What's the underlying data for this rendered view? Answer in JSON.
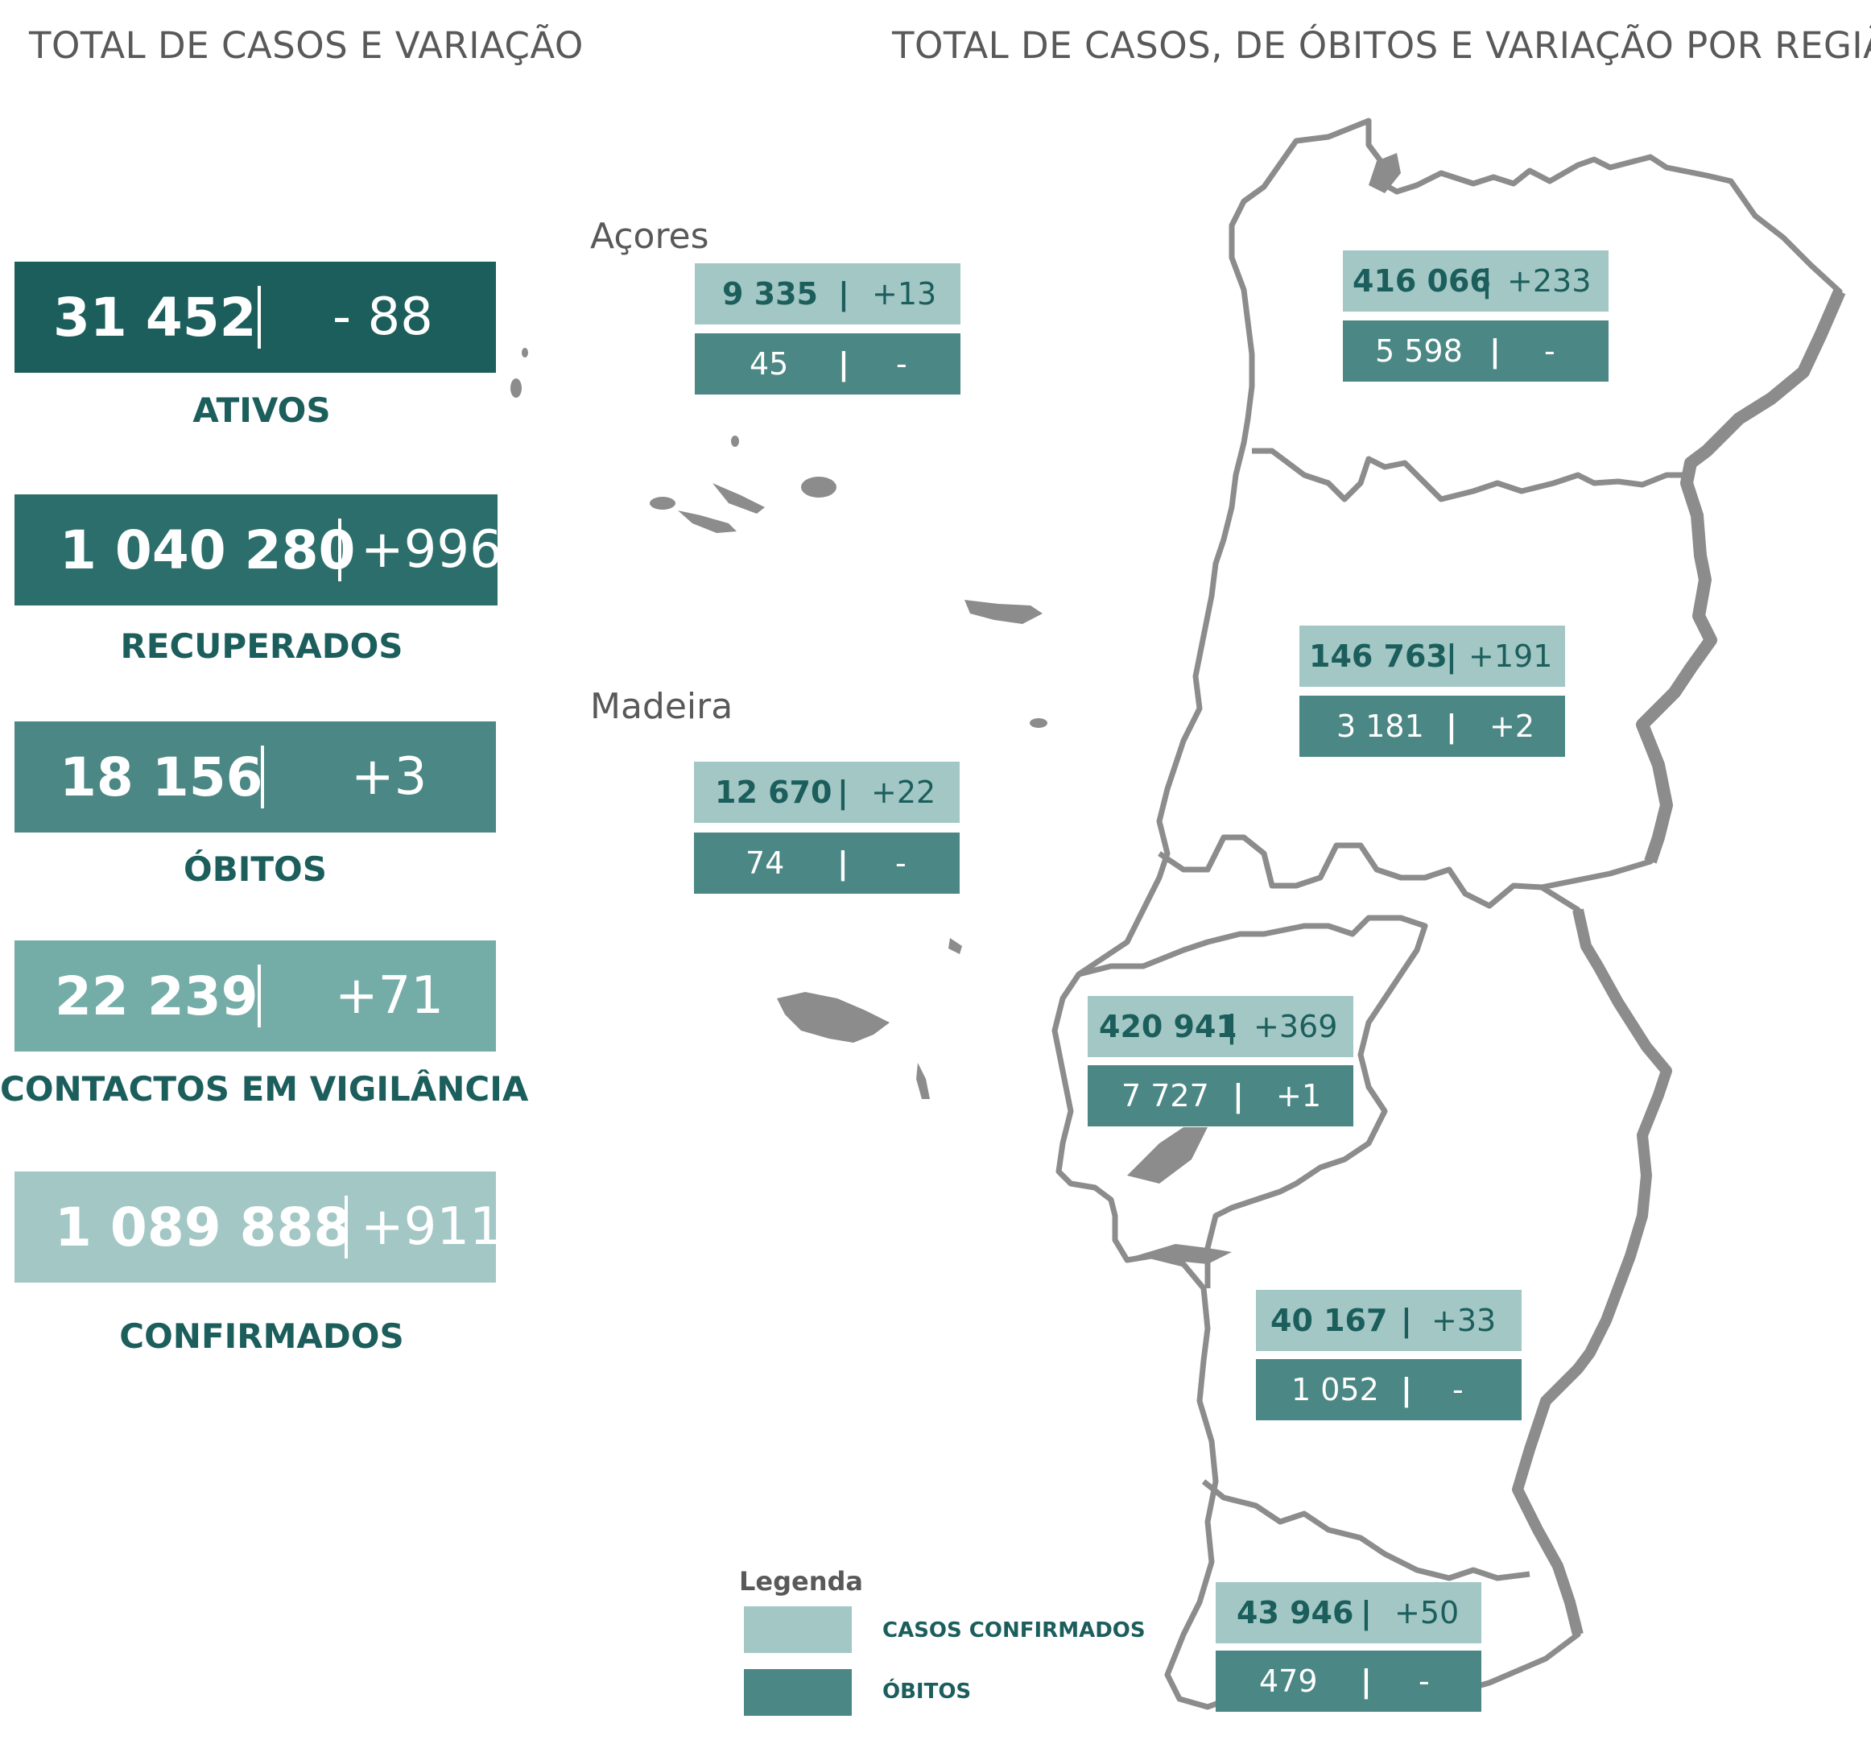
{
  "headings": {
    "left": "TOTAL DE CASOS E VARIAÇÃO",
    "right": "TOTAL DE CASOS, DE ÓBITOS E VARIAÇÃO POR REGIÃO"
  },
  "colors": {
    "ativos": "#1b5e5c",
    "recuperados": "#2b6e6b",
    "obitos": "#4b8784",
    "contactos": "#74ada8",
    "confirmados": "#a3c7c5",
    "map_outline": "#8c8c8c",
    "label_text": "#1b5e5c"
  },
  "stats": {
    "ativos": {
      "value": "31 452",
      "sep": "|",
      "delta": "- 88",
      "label": "ATIVOS"
    },
    "recuperados": {
      "value": "1 040 280",
      "sep": "|",
      "delta": "+996",
      "label": "RECUPERADOS"
    },
    "obitos": {
      "value": "18 156",
      "sep": "|",
      "delta": "+3",
      "label": "ÓBITOS"
    },
    "contactos": {
      "value": "22 239",
      "sep": "|",
      "delta": "+71",
      "label": "CONTACTOS EM VIGILÂNCIA"
    },
    "confirmados": {
      "value": "1 089 888",
      "sep": "|",
      "delta": "+911",
      "label": "CONFIRMADOS"
    }
  },
  "islands": {
    "acores": "Açores",
    "madeira": "Madeira"
  },
  "regions": {
    "acores": {
      "cases": "9 335",
      "cases_delta": "+13",
      "deaths": "45",
      "deaths_delta": "-"
    },
    "madeira": {
      "cases": "12 670",
      "cases_delta": "+22",
      "deaths": "74",
      "deaths_delta": "-"
    },
    "norte": {
      "cases": "416 066",
      "cases_delta": "+233",
      "deaths": "5 598",
      "deaths_delta": "-"
    },
    "centro": {
      "cases": "146 763",
      "cases_delta": "+191",
      "deaths": "3 181",
      "deaths_delta": "+2"
    },
    "lisboa": {
      "cases": "420 941",
      "cases_delta": "+369",
      "deaths": "7 727",
      "deaths_delta": "+1"
    },
    "alentejo": {
      "cases": "40 167",
      "cases_delta": "+33",
      "deaths": "1 052",
      "deaths_delta": "-"
    },
    "algarve": {
      "cases": "43 946",
      "cases_delta": "+50",
      "deaths": "479",
      "deaths_delta": "-"
    },
    "sep": "|"
  },
  "legend": {
    "title": "Legenda",
    "confirmed": "CASOS CONFIRMADOS",
    "deaths": "ÓBITOS"
  }
}
